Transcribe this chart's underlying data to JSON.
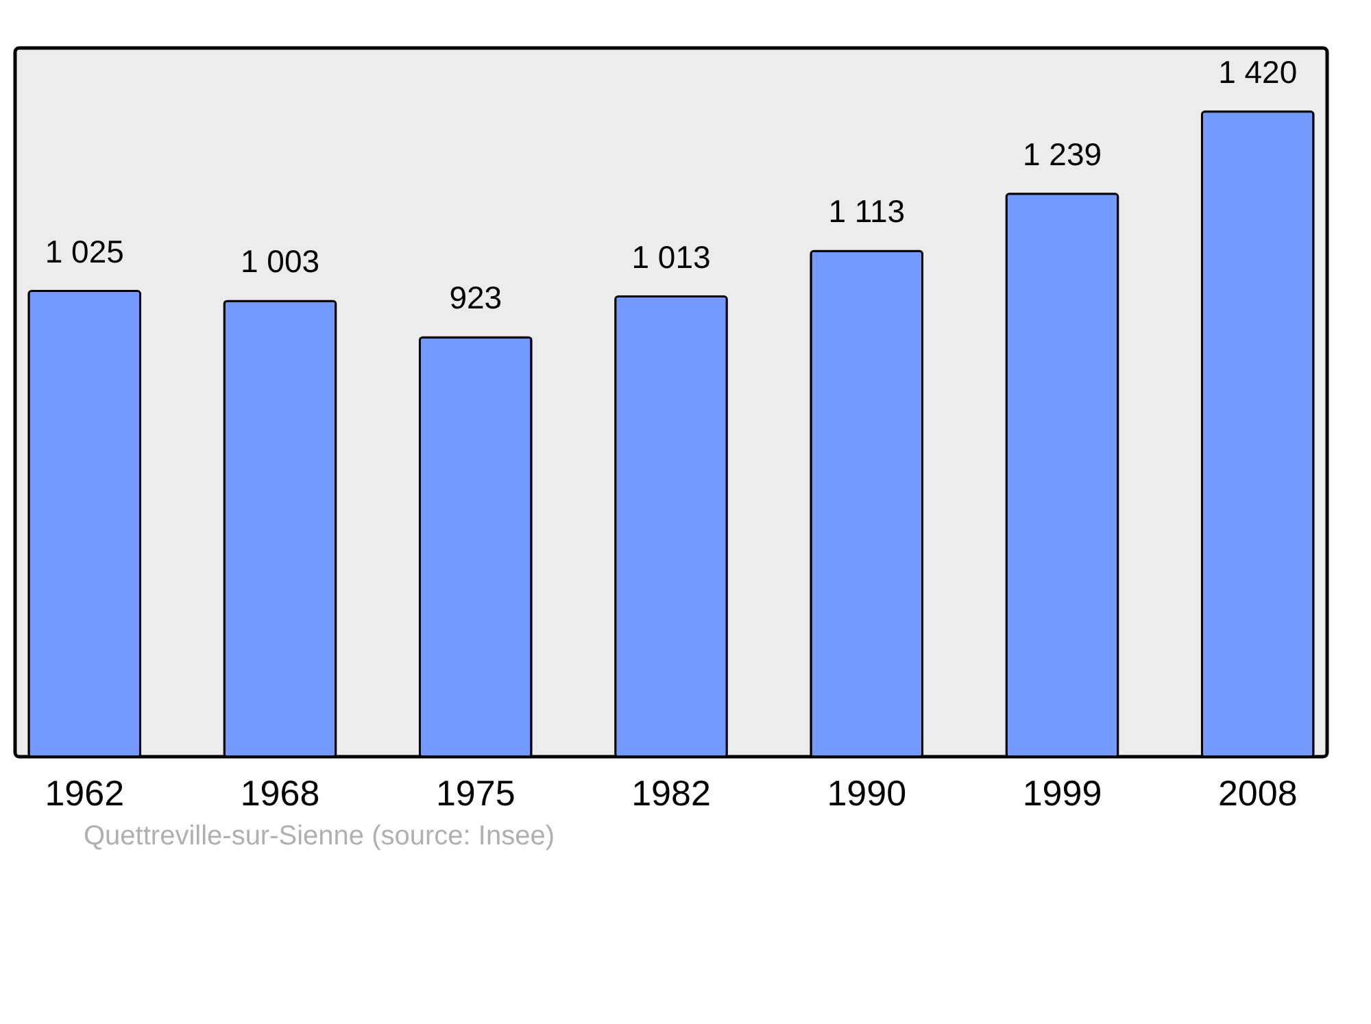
{
  "chart_data": {
    "type": "bar",
    "categories": [
      "1962",
      "1968",
      "1975",
      "1982",
      "1990",
      "1999",
      "2008"
    ],
    "values": [
      1025,
      1003,
      923,
      1013,
      1113,
      1239,
      1420
    ],
    "value_labels": [
      "1 025",
      "1 003",
      "923",
      "1 013",
      "1 113",
      "1 239",
      "1 420"
    ],
    "color": "#7499ff",
    "ylim": [
      0,
      1560
    ],
    "grid": false,
    "annotations": [
      "Quettreville-sur-Sienne    (source: Insee)"
    ]
  }
}
